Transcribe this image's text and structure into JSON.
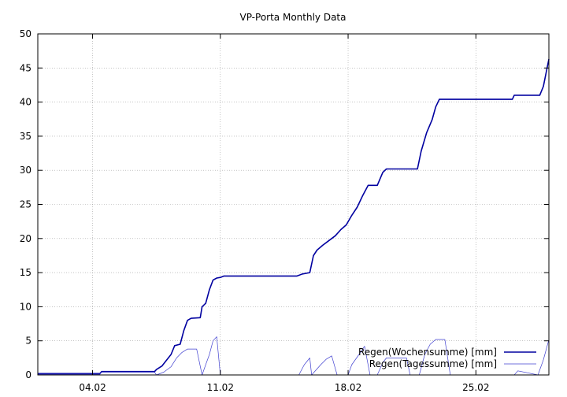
{
  "chart_data": {
    "type": "line",
    "title": "VP-Porta Monthly Data",
    "xlabel": "",
    "ylabel": "",
    "x_unit": "day of February",
    "xlim": [
      1.0,
      29.0
    ],
    "ylim": [
      0,
      50
    ],
    "yticks": [
      0,
      5,
      10,
      15,
      20,
      25,
      30,
      35,
      40,
      45,
      50
    ],
    "xticks": [
      {
        "value": 4,
        "label": "04.02"
      },
      {
        "value": 11,
        "label": "11.02"
      },
      {
        "value": 18,
        "label": "18.02"
      },
      {
        "value": 25,
        "label": "25.02"
      }
    ],
    "grid": true,
    "legend_position": "bottom-right",
    "series": [
      {
        "name": "Regen(Wochensumme) [mm]",
        "color": "#0000a0",
        "width": 1.6,
        "points": [
          [
            1.0,
            0.2
          ],
          [
            4.4,
            0.2
          ],
          [
            4.5,
            0.5
          ],
          [
            7.4,
            0.5
          ],
          [
            7.5,
            0.8
          ],
          [
            7.8,
            1.3
          ],
          [
            8.0,
            2.0
          ],
          [
            8.3,
            3.0
          ],
          [
            8.5,
            4.3
          ],
          [
            8.8,
            4.5
          ],
          [
            9.0,
            6.5
          ],
          [
            9.2,
            8.0
          ],
          [
            9.4,
            8.3
          ],
          [
            9.9,
            8.4
          ],
          [
            10.0,
            10.0
          ],
          [
            10.2,
            10.5
          ],
          [
            10.4,
            12.5
          ],
          [
            10.6,
            13.9
          ],
          [
            10.8,
            14.2
          ],
          [
            11.0,
            14.3
          ],
          [
            11.2,
            14.5
          ],
          [
            15.2,
            14.5
          ],
          [
            15.5,
            14.8
          ],
          [
            15.9,
            15.0
          ],
          [
            16.1,
            17.5
          ],
          [
            16.3,
            18.3
          ],
          [
            16.6,
            19.0
          ],
          [
            16.9,
            19.6
          ],
          [
            17.3,
            20.4
          ],
          [
            17.6,
            21.3
          ],
          [
            17.9,
            22.0
          ],
          [
            18.2,
            23.4
          ],
          [
            18.5,
            24.6
          ],
          [
            18.8,
            26.3
          ],
          [
            19.1,
            27.8
          ],
          [
            19.6,
            27.8
          ],
          [
            19.9,
            29.7
          ],
          [
            20.1,
            30.2
          ],
          [
            21.8,
            30.2
          ],
          [
            22.0,
            32.8
          ],
          [
            22.3,
            35.5
          ],
          [
            22.6,
            37.4
          ],
          [
            22.8,
            39.3
          ],
          [
            23.0,
            40.4
          ],
          [
            27.0,
            40.4
          ],
          [
            27.1,
            41.0
          ],
          [
            28.5,
            41.0
          ],
          [
            28.7,
            42.3
          ],
          [
            28.9,
            45.0
          ],
          [
            29.0,
            46.3
          ]
        ]
      },
      {
        "name": "Regen(Tagessumme) [mm]",
        "color": "#4040d0",
        "width": 0.7,
        "points": [
          [
            1.0,
            0.1
          ],
          [
            4.4,
            0.1
          ],
          [
            4.5,
            0.4
          ],
          [
            7.4,
            0.4
          ],
          [
            7.5,
            0.0
          ],
          [
            7.9,
            0.4
          ],
          [
            8.3,
            1.2
          ],
          [
            8.6,
            2.5
          ],
          [
            8.9,
            3.3
          ],
          [
            9.2,
            3.8
          ],
          [
            9.7,
            3.8
          ],
          [
            10.0,
            0.0
          ],
          [
            10.2,
            1.5
          ],
          [
            10.4,
            3.0
          ],
          [
            10.6,
            5.0
          ],
          [
            10.8,
            5.6
          ],
          [
            11.0,
            0.0
          ],
          [
            12.0,
            0.0
          ],
          [
            15.3,
            0.0
          ],
          [
            15.6,
            1.5
          ],
          [
            15.9,
            2.5
          ],
          [
            16.0,
            0.0
          ],
          [
            16.5,
            1.5
          ],
          [
            16.8,
            2.3
          ],
          [
            17.1,
            2.8
          ],
          [
            17.4,
            0.0
          ],
          [
            18.0,
            0.0
          ],
          [
            18.2,
            1.5
          ],
          [
            18.6,
            3.0
          ],
          [
            18.9,
            4.2
          ],
          [
            19.2,
            0.0
          ],
          [
            19.6,
            0.0
          ],
          [
            19.9,
            1.8
          ],
          [
            20.1,
            2.5
          ],
          [
            21.2,
            2.5
          ],
          [
            21.4,
            0.0
          ],
          [
            21.9,
            0.0
          ],
          [
            22.2,
            3.0
          ],
          [
            22.5,
            4.5
          ],
          [
            22.8,
            5.2
          ],
          [
            23.3,
            5.2
          ],
          [
            23.6,
            0.0
          ],
          [
            27.1,
            0.0
          ],
          [
            27.3,
            0.6
          ],
          [
            28.4,
            0.0
          ],
          [
            28.7,
            2.2
          ],
          [
            28.9,
            4.2
          ],
          [
            29.0,
            5.2
          ]
        ]
      }
    ]
  }
}
